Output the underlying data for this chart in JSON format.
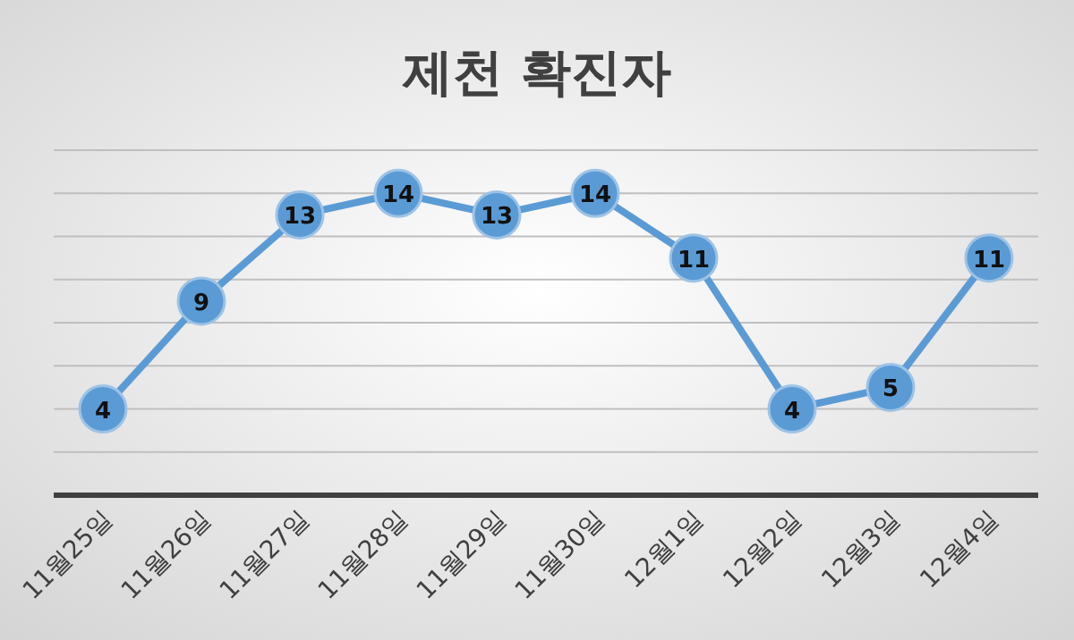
{
  "chart_data": {
    "type": "line",
    "title": "제천 확진자",
    "categories": [
      "11월25일",
      "11월26일",
      "11월27일",
      "11월28일",
      "11월29일",
      "11월30일",
      "12월1일",
      "12월2일",
      "12월3일",
      "12월4일"
    ],
    "values": [
      4,
      9,
      13,
      14,
      13,
      14,
      11,
      4,
      5,
      11
    ],
    "color": "#5b9bd5",
    "ylim": [
      0,
      16
    ],
    "yticks": [
      {
        "value": 0,
        "label": null
      },
      {
        "value": 2,
        "label": null
      },
      {
        "value": 4,
        "label": null
      },
      {
        "value": 6,
        "label": null
      },
      {
        "value": 8,
        "label": null
      },
      {
        "value": 10,
        "label": null
      },
      {
        "value": 12,
        "label": null
      },
      {
        "value": 14,
        "label": null
      },
      {
        "value": 16,
        "label": null
      }
    ],
    "grid": "y",
    "marker": "circle",
    "data_labels": true,
    "tick_labels": "x"
  }
}
